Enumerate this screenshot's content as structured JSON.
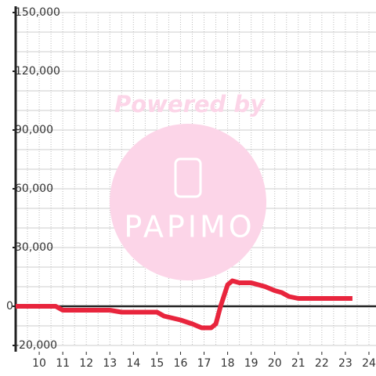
{
  "chart_data": {
    "type": "line",
    "watermark": {
      "line1": "Powered by",
      "line2": "PAPIMO"
    },
    "x": [
      9,
      10.7,
      11,
      12,
      13,
      13.5,
      14,
      15,
      15.3,
      16,
      16.5,
      16.9,
      17.3,
      17.5,
      17.7,
      18,
      18.2,
      18.5,
      19,
      19.3,
      19.6,
      20,
      20.3,
      20.6,
      21,
      22,
      23.3
    ],
    "series": [
      {
        "color": "#e8253d",
        "values": [
          0,
          0,
          -2000,
          -2000,
          -2000,
          -3000,
          -3000,
          -3000,
          -5000,
          -7000,
          -9000,
          -11000,
          -11000,
          -9000,
          0,
          11000,
          13000,
          12000,
          12000,
          11000,
          10000,
          8000,
          7000,
          5000,
          4000,
          4000,
          4000
        ]
      }
    ],
    "xlim": [
      9,
      24.3
    ],
    "xticks": [
      10,
      11,
      12,
      13,
      14,
      15,
      16,
      17,
      18,
      19,
      20,
      21,
      22,
      23,
      24
    ],
    "xminorticks": [
      9.5,
      10.5,
      11.5,
      12.5,
      13.5,
      14.5,
      15.5,
      16.5,
      17.5,
      18.5,
      19.5,
      20.5,
      21.5,
      22.5,
      23.5
    ],
    "ylim": [
      -20000,
      150000
    ],
    "yticks": [
      {
        "value": -20000,
        "label": "-20,000"
      },
      0,
      {
        "value": 30000,
        "label": "30,000"
      },
      {
        "value": 60000,
        "label": "60,000"
      },
      {
        "value": 90000,
        "label": "90,000"
      },
      {
        "value": 120000,
        "label": "120,000"
      },
      {
        "value": 150000,
        "label": "150,000"
      }
    ],
    "yminorticks": [
      -10000,
      10000,
      20000,
      40000,
      50000,
      70000,
      80000,
      100000,
      110000,
      130000,
      140000
    ],
    "grid": true
  }
}
